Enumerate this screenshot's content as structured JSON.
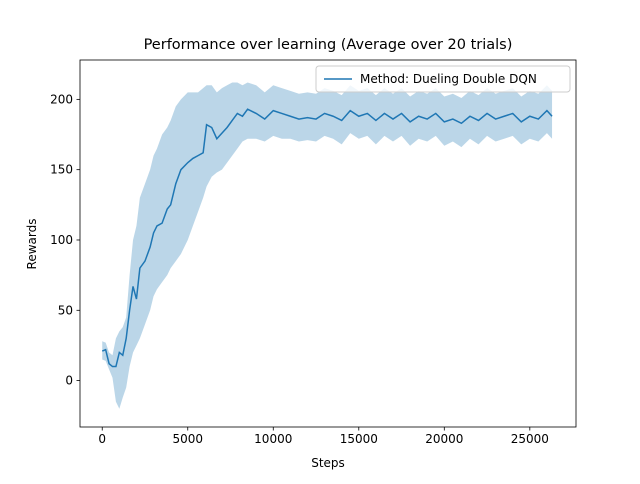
{
  "chart_data": {
    "type": "line",
    "title": "Performance over learning (Average over 20 trials)",
    "x_label": "Steps",
    "y_label": "Rewards",
    "x": [
      0,
      200,
      400,
      600,
      800,
      1000,
      1200,
      1400,
      1600,
      1800,
      2000,
      2200,
      2500,
      2800,
      3000,
      3200,
      3500,
      3800,
      4000,
      4300,
      4600,
      5000,
      5300,
      5600,
      5900,
      6100,
      6400,
      6700,
      7000,
      7300,
      7600,
      7900,
      8200,
      8500,
      9000,
      9500,
      10000,
      10500,
      11000,
      11500,
      12000,
      12500,
      13000,
      13500,
      14000,
      14500,
      15000,
      15500,
      16000,
      16500,
      17000,
      17500,
      18000,
      18500,
      19000,
      19500,
      20000,
      20500,
      21000,
      21500,
      22000,
      22500,
      23000,
      23500,
      24000,
      24500,
      25000,
      25500,
      26000,
      26300
    ],
    "series": [
      {
        "name": "Method: Dueling Double DQN",
        "color": "#1f77b4",
        "values": [
          21,
          22,
          12,
          10,
          10,
          20,
          18,
          30,
          50,
          67,
          58,
          80,
          85,
          95,
          105,
          110,
          112,
          122,
          125,
          140,
          150,
          155,
          158,
          160,
          162,
          182,
          180,
          172,
          176,
          180,
          185,
          190,
          188,
          193,
          190,
          186,
          192,
          190,
          188,
          186,
          187,
          186,
          190,
          188,
          185,
          192,
          188,
          190,
          185,
          190,
          186,
          190,
          184,
          188,
          186,
          190,
          184,
          186,
          183,
          188,
          185,
          190,
          186,
          188,
          190,
          184,
          188,
          186,
          192,
          188
        ],
        "band_lower": [
          15,
          14,
          8,
          2,
          -15,
          -20,
          -12,
          -5,
          10,
          20,
          25,
          30,
          40,
          50,
          60,
          65,
          70,
          75,
          80,
          85,
          90,
          100,
          110,
          120,
          130,
          138,
          145,
          148,
          150,
          155,
          160,
          165,
          170,
          172,
          172,
          170,
          174,
          172,
          172,
          170,
          171,
          170,
          174,
          172,
          168,
          176,
          172,
          174,
          168,
          174,
          170,
          174,
          167,
          172,
          170,
          174,
          167,
          170,
          166,
          172,
          168,
          174,
          170,
          172,
          174,
          168,
          172,
          170,
          176,
          172
        ],
        "band_upper": [
          28,
          27,
          20,
          18,
          30,
          35,
          38,
          45,
          75,
          100,
          110,
          130,
          140,
          150,
          160,
          165,
          175,
          180,
          185,
          195,
          200,
          205,
          205,
          205,
          208,
          210,
          210,
          205,
          208,
          210,
          212,
          212,
          210,
          212,
          210,
          205,
          210,
          208,
          206,
          204,
          205,
          204,
          208,
          206,
          203,
          210,
          206,
          208,
          203,
          208,
          204,
          208,
          202,
          206,
          204,
          208,
          202,
          204,
          201,
          206,
          203,
          208,
          204,
          206,
          208,
          202,
          206,
          204,
          210,
          206
        ]
      }
    ],
    "xlim": [
      -1300,
      27700
    ],
    "ylim": [
      -33,
      228
    ],
    "xticks": [
      0,
      5000,
      10000,
      15000,
      20000,
      25000
    ],
    "yticks": [
      0,
      50,
      100,
      150,
      200
    ],
    "band_opacity": 0.3,
    "legend": "upper right"
  }
}
